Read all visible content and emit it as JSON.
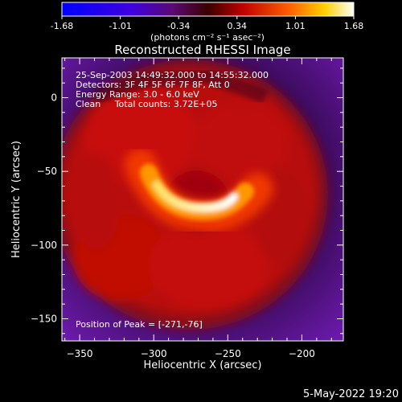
{
  "colorbar": {
    "ticks": [
      "-1.68",
      "-1.01",
      "-0.34",
      "0.34",
      "1.01",
      "1.68"
    ],
    "unit_label": "(photons cm⁻² s⁻¹ asec⁻²)"
  },
  "image": {
    "title": "Reconstructed RHESSI Image",
    "info_lines": [
      "25-Sep-2003 14:49:32.000 to 14:55:32.000",
      "Detectors: 3F 4F 5F 6F 7F 8F, Att 0",
      "Energy Range: 3.0 - 6.0 keV",
      "Clean     Total counts: 3.72E+05"
    ],
    "peak_label": "Position of Peak = [-271,-76]"
  },
  "footer": {
    "timestamp": "5-May-2022 19:20"
  },
  "chart_data": {
    "type": "heatmap",
    "title": "Reconstructed RHESSI Image",
    "xlabel": "Heliocentric X (arcsec)",
    "ylabel": "Heliocentric Y (arcsec)",
    "xlim": [
      -362,
      -172
    ],
    "ylim": [
      -165,
      27
    ],
    "xticks": [
      -350,
      -300,
      -250,
      -200
    ],
    "yticks": [
      0,
      -50,
      -100,
      -150
    ],
    "colorbar_range": [
      -1.68,
      1.68
    ],
    "peak": {
      "x": -271,
      "y": -76
    },
    "colormap_stops": [
      "#0000ff",
      "#5000d8",
      "#40087a",
      "#3a0040",
      "#7a0010",
      "#c00000",
      "#e82800",
      "#ff7800",
      "#ffc000",
      "#ffffff"
    ]
  }
}
